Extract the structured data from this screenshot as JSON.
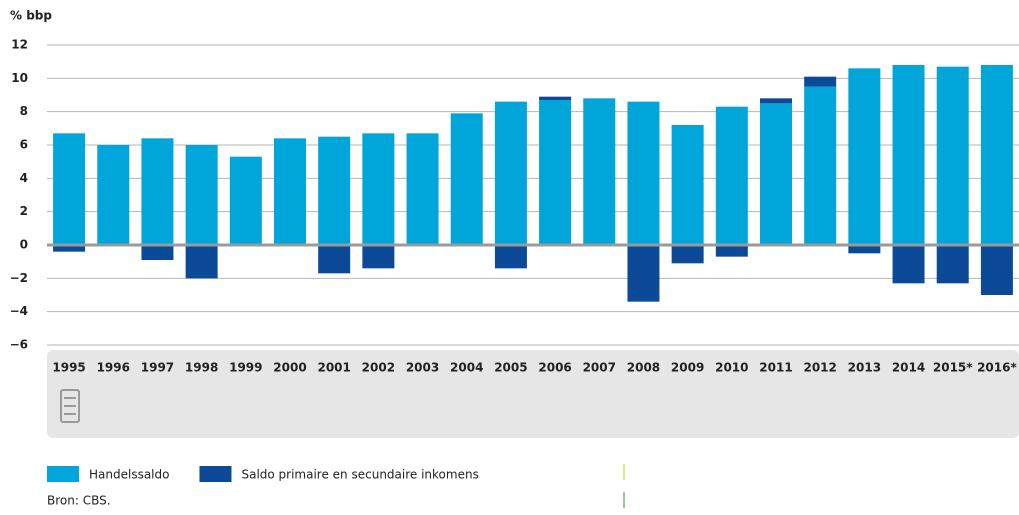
{
  "chart_data": {
    "type": "stacked-bar",
    "y_label": "% bbp",
    "categories": [
      "1995",
      "1996",
      "1997",
      "1998",
      "1999",
      "2000",
      "2001",
      "2002",
      "2003",
      "2004",
      "2005",
      "2006",
      "2007",
      "2008",
      "2009",
      "2010",
      "2011",
      "2012",
      "2013",
      "2014",
      "2015*",
      "2016*"
    ],
    "series": [
      {
        "name": "Handelssaldo",
        "color": "#00a5d9",
        "values": [
          6.7,
          6.0,
          6.4,
          6.0,
          5.3,
          6.4,
          6.5,
          6.7,
          6.7,
          7.9,
          8.6,
          8.7,
          8.8,
          8.6,
          7.2,
          8.3,
          8.5,
          9.5,
          10.6,
          10.8,
          10.7,
          10.8
        ]
      },
      {
        "name": "Saldo primaire en secundaire inkomens",
        "color": "#0c4a97",
        "values": [
          -0.4,
          0,
          -0.9,
          -2.0,
          0,
          0,
          -1.7,
          -1.4,
          0,
          0,
          -1.4,
          0.2,
          0,
          -3.4,
          -1.1,
          -0.7,
          0.3,
          0.6,
          -0.5,
          -2.3,
          -2.3,
          -3.0
        ]
      }
    ],
    "ylim": [
      -6,
      12
    ],
    "yticks": [
      {
        "value": -6,
        "label": "−6"
      },
      {
        "value": -4,
        "label": "−4"
      },
      {
        "value": -2,
        "label": "−2"
      },
      0,
      2,
      4,
      6,
      8,
      10,
      12
    ],
    "grid": true,
    "source": "Bron: CBS."
  }
}
